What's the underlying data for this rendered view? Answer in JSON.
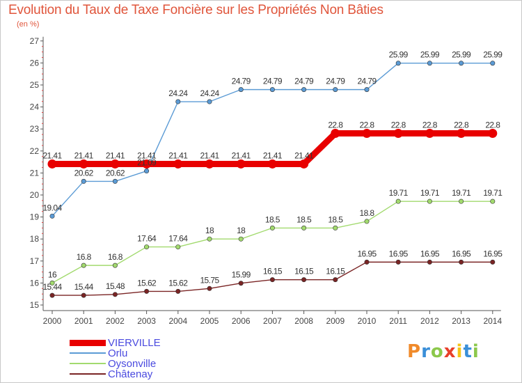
{
  "chart_data": {
    "type": "line",
    "title": "Evolution du Taux de Taxe Foncière sur les Propriétés Non Bâties",
    "subtitle": "(en %)",
    "xlabel": "",
    "ylabel": "",
    "categories": [
      "2000",
      "2001",
      "2002",
      "2003",
      "2004",
      "2005",
      "2006",
      "2007",
      "2008",
      "2009",
      "2010",
      "2011",
      "2012",
      "2013",
      "2014"
    ],
    "ylim": [
      15,
      27
    ],
    "yticks": [
      "15",
      "16",
      "17",
      "18",
      "19",
      "20",
      "21",
      "22",
      "23",
      "24",
      "25",
      "26",
      "27"
    ],
    "grid": false,
    "legend_position": "bottom-left",
    "series": [
      {
        "name": "VIERVILLE",
        "color": "#e80000",
        "values": [
          21.41,
          21.41,
          21.41,
          21.41,
          21.41,
          21.41,
          21.41,
          21.41,
          21.41,
          22.8,
          22.8,
          22.8,
          22.8,
          22.8,
          22.8
        ],
        "labels": [
          "21.41",
          "21.41",
          "21.41",
          "21.41",
          "21.41",
          "21.41",
          "21.41",
          "21.41",
          "21.41",
          "22.8",
          "22.8",
          "22.8",
          "22.8",
          "22.8",
          "22.8"
        ]
      },
      {
        "name": "Orlu",
        "color": "#5b9bd5",
        "values": [
          19.04,
          20.62,
          20.62,
          21.09,
          24.24,
          24.24,
          24.79,
          24.79,
          24.79,
          24.79,
          24.79,
          25.99,
          25.99,
          25.99,
          25.99
        ],
        "labels": [
          "19.04",
          "20.62",
          "20.62",
          "21.09",
          "24.24",
          "24.24",
          "24.79",
          "24.79",
          "24.79",
          "24.79",
          "24.79",
          "25.99",
          "25.99",
          "25.99",
          "25.99"
        ]
      },
      {
        "name": "Oysonville",
        "color": "#a2da6e",
        "values": [
          16,
          16.8,
          16.8,
          17.64,
          17.64,
          18,
          18,
          18.5,
          18.5,
          18.5,
          18.8,
          19.71,
          19.71,
          19.71,
          19.71
        ],
        "labels": [
          "16",
          "16.8",
          "16.8",
          "17.64",
          "17.64",
          "18",
          "18",
          "18.5",
          "18.5",
          "18.5",
          "18.8",
          "19.71",
          "19.71",
          "19.71",
          "19.71"
        ]
      },
      {
        "name": "Châtenay",
        "color": "#7a2424",
        "values": [
          15.44,
          15.44,
          15.48,
          15.62,
          15.62,
          15.75,
          15.99,
          16.15,
          16.15,
          16.15,
          16.95,
          16.95,
          16.95,
          16.95,
          16.95
        ],
        "labels": [
          "15.44",
          "15.44",
          "15.48",
          "15.62",
          "15.62",
          "15.75",
          "15.99",
          "16.15",
          "16.15",
          "16.15",
          "16.95",
          "16.95",
          "16.95",
          "16.95",
          "16.95"
        ]
      }
    ]
  },
  "logo": {
    "text": "Proxiti",
    "colors": [
      "#f08a2a",
      "#3a8fd8",
      "#8cc84b",
      "#e8402a",
      "#f5c518",
      "#3a8fd8",
      "#8cc84b"
    ]
  }
}
